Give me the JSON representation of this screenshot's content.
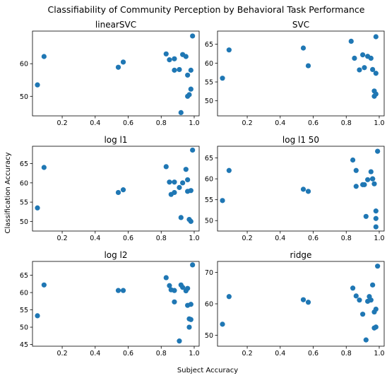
{
  "figure": {
    "title": "Classifiability of Community Perception by Behavioral Task Performance",
    "xlabel": "Subject Accuracy",
    "ylabel": "Classification Accuracy"
  },
  "colors": {
    "points": "#1f77b4",
    "axes": "#000000",
    "background": "#ffffff"
  },
  "chart_data": [
    {
      "type": "scatter",
      "title": "linearSVC",
      "x": [
        0.05,
        0.09,
        0.54,
        0.57,
        0.83,
        0.85,
        0.88,
        0.88,
        0.91,
        0.92,
        0.93,
        0.95,
        0.96,
        0.96,
        0.97,
        0.98,
        0.98,
        0.99
      ],
      "y": [
        53.5,
        62.2,
        58.9,
        60.5,
        63.0,
        61.2,
        58.0,
        61.5,
        58.2,
        45.0,
        62.8,
        62.2,
        56.5,
        50.0,
        50.5,
        52.2,
        58.0,
        68.5
      ],
      "xticks": [
        "0.2",
        "0.4",
        "0.6",
        "0.8",
        "1.0"
      ],
      "yticks": [
        "50",
        "60"
      ],
      "xlim": [
        0.02,
        1.03
      ],
      "ylim": [
        44.0,
        70.0
      ],
      "grid": false
    },
    {
      "type": "scatter",
      "title": "SVC",
      "x": [
        0.05,
        0.09,
        0.54,
        0.57,
        0.83,
        0.85,
        0.88,
        0.9,
        0.91,
        0.93,
        0.95,
        0.96,
        0.97,
        0.97,
        0.98,
        0.98,
        0.98
      ],
      "y": [
        56.0,
        63.5,
        64.0,
        59.3,
        65.8,
        61.3,
        58.2,
        62.2,
        58.8,
        61.8,
        61.3,
        58.3,
        52.6,
        51.2,
        57.3,
        51.8,
        67.0
      ],
      "xticks": [
        "0.2",
        "0.4",
        "0.6",
        "0.8",
        "1.0"
      ],
      "yticks": [
        "50",
        "55",
        "60",
        "65"
      ],
      "xlim": [
        0.02,
        1.03
      ],
      "ylim": [
        46.0,
        68.5
      ],
      "grid": false
    },
    {
      "type": "scatter",
      "title": "log l1",
      "x": [
        0.05,
        0.09,
        0.54,
        0.57,
        0.83,
        0.85,
        0.86,
        0.88,
        0.88,
        0.91,
        0.92,
        0.93,
        0.95,
        0.96,
        0.96,
        0.97,
        0.98,
        0.98,
        0.99
      ],
      "y": [
        53.5,
        64.0,
        57.5,
        58.2,
        64.2,
        60.2,
        57.0,
        60.2,
        57.5,
        58.8,
        51.0,
        60.0,
        63.5,
        57.8,
        60.8,
        50.5,
        50.0,
        58.0,
        68.5
      ],
      "xticks": [
        "0.2",
        "0.4",
        "0.6",
        "0.8",
        "1.0"
      ],
      "yticks": [
        "50",
        "55",
        "60",
        "65"
      ],
      "xlim": [
        0.02,
        1.03
      ],
      "ylim": [
        47.5,
        69.5
      ],
      "grid": false
    },
    {
      "type": "scatter",
      "title": "log l1 50",
      "x": [
        0.05,
        0.09,
        0.54,
        0.57,
        0.84,
        0.86,
        0.86,
        0.9,
        0.91,
        0.92,
        0.93,
        0.95,
        0.96,
        0.96,
        0.97,
        0.98,
        0.98,
        0.98,
        0.99
      ],
      "y": [
        54.8,
        62.0,
        57.5,
        57.0,
        64.5,
        62.0,
        58.2,
        58.6,
        58.6,
        51.0,
        59.8,
        61.7,
        60.0,
        60.0,
        58.8,
        50.5,
        52.3,
        48.5,
        66.6
      ],
      "xticks": [
        "0.2",
        "0.4",
        "0.6",
        "0.8",
        "1.0"
      ],
      "yticks": [
        "50",
        "55",
        "60",
        "65"
      ],
      "xlim": [
        0.02,
        1.03
      ],
      "ylim": [
        47.5,
        67.8
      ],
      "grid": false
    },
    {
      "type": "scatter",
      "title": "log l2",
      "x": [
        0.05,
        0.09,
        0.54,
        0.57,
        0.83,
        0.85,
        0.86,
        0.88,
        0.88,
        0.91,
        0.92,
        0.93,
        0.95,
        0.96,
        0.96,
        0.97,
        0.97,
        0.98,
        0.98,
        0.99
      ],
      "y": [
        53.3,
        62.2,
        60.6,
        60.6,
        64.3,
        62.0,
        60.8,
        60.6,
        57.3,
        46.0,
        62.2,
        61.5,
        60.5,
        61.2,
        56.3,
        50.0,
        52.4,
        52.2,
        56.6,
        68.0
      ],
      "xticks": [
        "0.2",
        "0.4",
        "0.6",
        "0.8",
        "1.0"
      ],
      "yticks": [
        "45",
        "50",
        "55",
        "60",
        "65"
      ],
      "xlim": [
        0.02,
        1.03
      ],
      "ylim": [
        44.5,
        69.0
      ],
      "grid": false
    },
    {
      "type": "scatter",
      "title": "ridge",
      "x": [
        0.05,
        0.09,
        0.54,
        0.57,
        0.84,
        0.86,
        0.88,
        0.9,
        0.92,
        0.93,
        0.94,
        0.95,
        0.96,
        0.97,
        0.97,
        0.98,
        0.98,
        0.99
      ],
      "y": [
        53.5,
        62.3,
        61.3,
        60.5,
        65.0,
        62.5,
        61.2,
        56.7,
        48.5,
        60.8,
        62.3,
        61.2,
        66.0,
        57.4,
        52.3,
        52.6,
        58.3,
        72.0
      ],
      "xticks": [
        "0.2",
        "0.4",
        "0.6",
        "0.8",
        "1.0"
      ],
      "yticks": [
        "50",
        "60",
        "70"
      ],
      "xlim": [
        0.02,
        1.03
      ],
      "ylim": [
        46.5,
        73.5
      ],
      "grid": false
    }
  ]
}
